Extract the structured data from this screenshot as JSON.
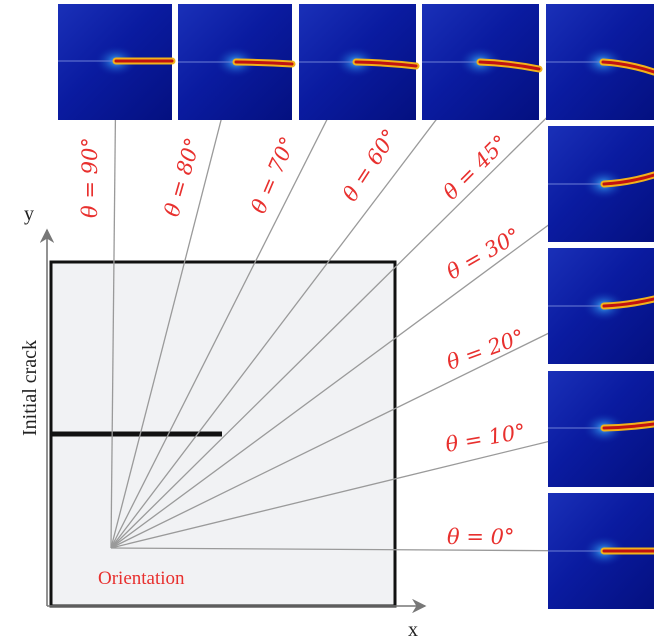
{
  "axes": {
    "x_label": "x",
    "y_label": "y"
  },
  "specimen": {
    "crack_label": "Initial crack",
    "origin_label": "Orientation"
  },
  "orientations": [
    {
      "angle": 90,
      "label": "θ = 90°"
    },
    {
      "angle": 80,
      "label": "θ = 80°"
    },
    {
      "angle": 70,
      "label": "θ = 70°"
    },
    {
      "angle": 60,
      "label": "θ = 60°"
    },
    {
      "angle": 45,
      "label": "θ = 45°"
    },
    {
      "angle": 30,
      "label": "θ = 30°"
    },
    {
      "angle": 20,
      "label": "θ = 20°"
    },
    {
      "angle": 10,
      "label": "θ = 10°"
    },
    {
      "angle": 0,
      "label": "θ = 0°"
    }
  ],
  "colors": {
    "label_red": "#e8302e",
    "panel_blue": "#08179a",
    "crack_core": "#b01010",
    "plate_fill": "#f1f2f4"
  }
}
